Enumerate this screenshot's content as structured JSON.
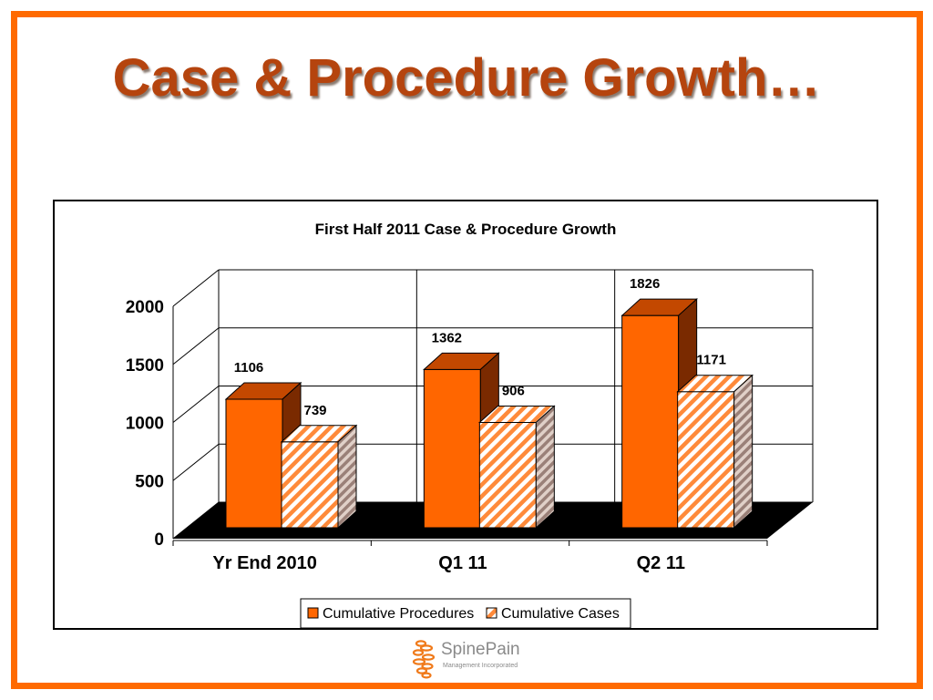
{
  "slide": {
    "title": "Case & Procedure Growth…",
    "colors": {
      "border": "#ff6a00",
      "title": "#b5440e"
    }
  },
  "logo": {
    "name": "SpinePain",
    "tagline": "Management Incorporated"
  },
  "chart_data": {
    "type": "bar",
    "title": "First Half 2011 Case & Procedure Growth",
    "categories": [
      "Yr End 2010",
      "Q1 11",
      "Q2 11"
    ],
    "series": [
      {
        "name": "Cumulative Procedures",
        "values": [
          1106,
          1362,
          1826
        ],
        "color": "#ff6600",
        "pattern": "solid"
      },
      {
        "name": "Cumulative Cases",
        "values": [
          739,
          906,
          1171
        ],
        "color": "#ff6600",
        "pattern": "diagonal-stripes"
      }
    ],
    "ylim": [
      0,
      2000
    ],
    "yticks": [
      "0",
      "500",
      "1000",
      "1500",
      "2000"
    ],
    "xlabel": "",
    "ylabel": "",
    "grid": true,
    "legend": "bottom",
    "style": "3d"
  }
}
